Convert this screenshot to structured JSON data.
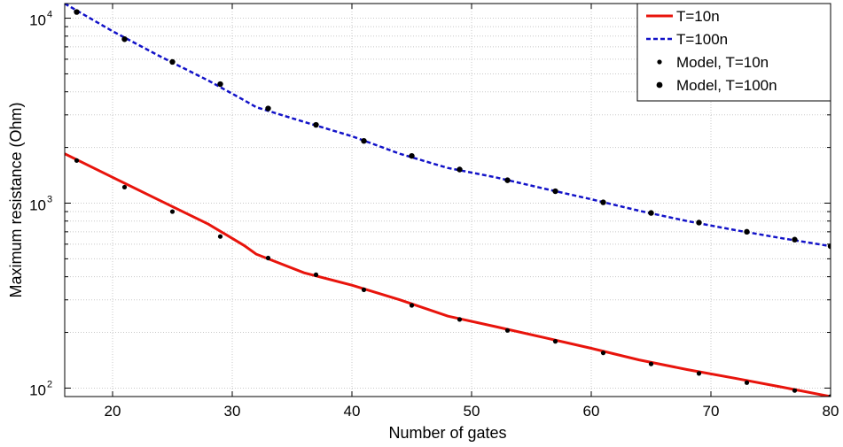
{
  "chart_data": {
    "type": "line",
    "title": "",
    "xlabel": "Number of gates",
    "ylabel": "Maximum resistance (Ohm)",
    "xscale": "linear",
    "yscale": "log",
    "xlim": [
      16,
      80
    ],
    "ylim": [
      90,
      12000
    ],
    "grid": true,
    "legend_position": "top-right",
    "x_ticks": [
      20,
      30,
      40,
      50,
      60,
      70,
      80
    ],
    "y_ticks": [
      {
        "value": 100,
        "base": "10",
        "exp": "2"
      },
      {
        "value": 1000,
        "base": "10",
        "exp": "3"
      },
      {
        "value": 10000,
        "base": "10",
        "exp": "4"
      }
    ],
    "series": [
      {
        "name": "T=10n",
        "style": "solid",
        "color": "#e8140c",
        "x": [
          16,
          20,
          24,
          28,
          31,
          32,
          36,
          40,
          44,
          48,
          52,
          56,
          60,
          64,
          68,
          72,
          76,
          80
        ],
        "y": [
          1850,
          1380,
          1030,
          770,
          590,
          530,
          420,
          360,
          300,
          245,
          215,
          188,
          164,
          142,
          126,
          113,
          101,
          90
        ]
      },
      {
        "name": "T=100n",
        "style": "dashed",
        "color": "#1212c8",
        "x": [
          16,
          20,
          24,
          28,
          31,
          32,
          36,
          40,
          44,
          48,
          52,
          56,
          60,
          64,
          68,
          72,
          76,
          80
        ],
        "y": [
          12000,
          8500,
          6200,
          4600,
          3600,
          3300,
          2750,
          2300,
          1850,
          1550,
          1380,
          1200,
          1050,
          910,
          800,
          715,
          645,
          585
        ]
      },
      {
        "name": "Model, T=10n",
        "style": "dots-small",
        "color": "#000000",
        "x": [
          17,
          21,
          25,
          29,
          33,
          37,
          41,
          45,
          49,
          53,
          57,
          61,
          65,
          69,
          73,
          77,
          80
        ],
        "y": [
          1700,
          1220,
          900,
          660,
          505,
          410,
          340,
          280,
          235,
          205,
          179,
          155,
          135,
          120,
          107,
          97,
          90
        ]
      },
      {
        "name": "Model, T=100n",
        "style": "dots-large",
        "color": "#000000",
        "x": [
          17,
          21,
          25,
          29,
          33,
          37,
          41,
          45,
          49,
          53,
          57,
          61,
          65,
          69,
          73,
          77,
          80
        ],
        "y": [
          10800,
          7700,
          5800,
          4400,
          3250,
          2650,
          2170,
          1800,
          1520,
          1330,
          1160,
          1010,
          885,
          785,
          700,
          635,
          585
        ]
      }
    ]
  }
}
